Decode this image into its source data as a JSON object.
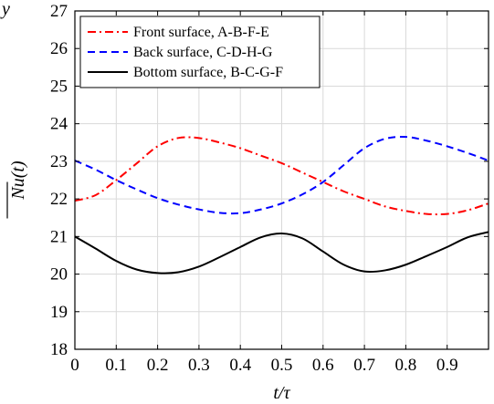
{
  "panel_letter": "y",
  "chart_data": {
    "type": "line",
    "title": "",
    "xlabel": "t/τ",
    "ylabel": "Nu(t)",
    "xlim": [
      0,
      1.0
    ],
    "ylim": [
      18,
      27
    ],
    "xticks": [
      0,
      0.1,
      0.2,
      0.3,
      0.4,
      0.5,
      0.6,
      0.7,
      0.8,
      0.9
    ],
    "xtick_labels": [
      "0",
      "0.1",
      "0.2",
      "0.3",
      "0.4",
      "0.5",
      "0.6",
      "0.7",
      "0.8",
      "0.9"
    ],
    "yticks": [
      18,
      19,
      20,
      21,
      22,
      23,
      24,
      25,
      26,
      27
    ],
    "ytick_labels": [
      "18",
      "19",
      "20",
      "21",
      "22",
      "23",
      "24",
      "25",
      "26",
      "27"
    ],
    "grid": true,
    "legend_position": "top-left",
    "x": [
      0,
      0.05,
      0.1,
      0.15,
      0.2,
      0.25,
      0.3,
      0.35,
      0.4,
      0.45,
      0.5,
      0.55,
      0.6,
      0.65,
      0.7,
      0.75,
      0.8,
      0.85,
      0.9,
      0.95,
      1.0
    ],
    "series": [
      {
        "name": "Front surface, A-B-F-E",
        "color": "#ff0000",
        "dash": "dashdot",
        "values": [
          21.95,
          22.1,
          22.5,
          22.95,
          23.4,
          23.62,
          23.62,
          23.5,
          23.35,
          23.15,
          22.95,
          22.7,
          22.45,
          22.2,
          22.0,
          21.8,
          21.68,
          21.6,
          21.6,
          21.7,
          21.88
        ]
      },
      {
        "name": "Back surface, C-D-H-G",
        "color": "#0000ff",
        "dash": "dashed",
        "values": [
          23.02,
          22.78,
          22.5,
          22.25,
          22.02,
          21.85,
          21.72,
          21.63,
          21.62,
          21.72,
          21.88,
          22.12,
          22.45,
          22.9,
          23.35,
          23.6,
          23.65,
          23.55,
          23.4,
          23.22,
          23.02
        ]
      },
      {
        "name": "Bottom surface, B-C-G-F",
        "color": "#000000",
        "dash": "solid",
        "values": [
          21.0,
          20.68,
          20.35,
          20.12,
          20.03,
          20.05,
          20.2,
          20.45,
          20.72,
          20.98,
          21.08,
          20.95,
          20.6,
          20.25,
          20.07,
          20.1,
          20.25,
          20.48,
          20.72,
          20.98,
          21.12
        ]
      }
    ]
  }
}
